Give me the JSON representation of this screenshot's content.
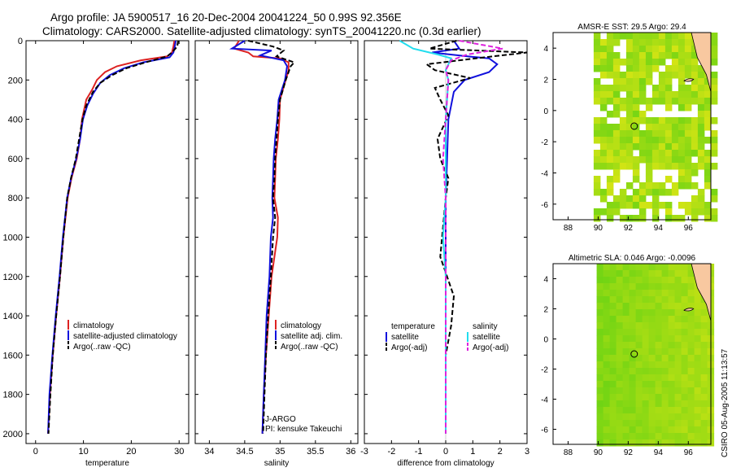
{
  "header": {
    "title_line1": "Argo profile: JA 5900517_16 20-Dec-2004 20041224_50 0.99S 92.356E",
    "title_line2": "Climatology: CARS2000. Satellite-adjusted climatology: synTS_20041220.nc (0.3d earlier)"
  },
  "colors": {
    "climatology": "#dd2222",
    "satellite": "#1111dd",
    "argo": "#000000",
    "salinity_satellite": "#22ddee",
    "salinity_argo": "#dd22dd",
    "land": "#f8c8a0",
    "ocean_green": "#33cc33",
    "ocean_yellow": "#ccee00"
  },
  "chart_data": [
    {
      "type": "line",
      "name": "temperature-panel",
      "xlabel": "temperature",
      "ylabel": "",
      "xlim": [
        -2,
        32
      ],
      "ylim": [
        2050,
        0
      ],
      "xticks": [
        0,
        10,
        20,
        30
      ],
      "yticks": [
        0,
        200,
        400,
        600,
        800,
        1000,
        1200,
        1400,
        1600,
        1800,
        2000
      ],
      "legend": [
        "climatology",
        "satellite-adjusted climatology",
        "Argo(..raw -QC)"
      ],
      "series": [
        {
          "name": "climatology",
          "style": "solid",
          "color_key": "climatology",
          "points": [
            [
              29.0,
              0
            ],
            [
              28.8,
              30
            ],
            [
              28.5,
              60
            ],
            [
              27.5,
              80
            ],
            [
              22,
              100
            ],
            [
              17,
              130
            ],
            [
              14.5,
              160
            ],
            [
              12.8,
              200
            ],
            [
              11.8,
              250
            ],
            [
              10.6,
              300
            ],
            [
              9.7,
              400
            ],
            [
              9.3,
              500
            ],
            [
              8.6,
              600
            ],
            [
              7.5,
              700
            ],
            [
              6.7,
              800
            ],
            [
              5.8,
              1000
            ],
            [
              5.1,
              1200
            ],
            [
              4.3,
              1400
            ],
            [
              3.6,
              1600
            ],
            [
              3.0,
              1800
            ],
            [
              2.6,
              2000
            ]
          ]
        },
        {
          "name": "satellite-adjusted climatology",
          "style": "solid",
          "color_key": "satellite",
          "points": [
            [
              29.3,
              0
            ],
            [
              29.1,
              30
            ],
            [
              28.8,
              60
            ],
            [
              28,
              85
            ],
            [
              22.5,
              110
            ],
            [
              18.5,
              140
            ],
            [
              15.5,
              175
            ],
            [
              13.5,
              215
            ],
            [
              12.0,
              270
            ],
            [
              10.8,
              330
            ],
            [
              9.9,
              400
            ],
            [
              9.3,
              500
            ],
            [
              8.5,
              600
            ],
            [
              7.4,
              700
            ],
            [
              6.6,
              800
            ],
            [
              5.7,
              1000
            ],
            [
              5.0,
              1200
            ],
            [
              4.2,
              1400
            ],
            [
              3.5,
              1600
            ],
            [
              2.9,
              1800
            ],
            [
              2.6,
              2000
            ]
          ]
        },
        {
          "name": "Argo(..raw -QC)",
          "style": "dashed",
          "color_key": "argo",
          "points": [
            [
              29.8,
              0
            ],
            [
              29.6,
              30
            ],
            [
              28.5,
              60
            ],
            [
              27.5,
              80
            ],
            [
              23,
              110
            ],
            [
              19,
              140
            ],
            [
              16,
              175
            ],
            [
              13.5,
              215
            ],
            [
              12.0,
              260
            ],
            [
              10.6,
              330
            ],
            [
              9.8,
              400
            ],
            [
              9.1,
              500
            ],
            [
              8.4,
              600
            ],
            [
              7.4,
              700
            ],
            [
              6.6,
              800
            ],
            [
              5.8,
              1000
            ],
            [
              5.1,
              1200
            ],
            [
              4.3,
              1400
            ],
            [
              3.6,
              1600
            ],
            [
              3.1,
              1800
            ],
            [
              2.7,
              2000
            ]
          ]
        }
      ]
    },
    {
      "type": "line",
      "name": "salinity-panel",
      "xlabel": "salinity",
      "xlim": [
        33.8,
        36.1
      ],
      "ylim": [
        2050,
        0
      ],
      "xticks": [
        34,
        34.5,
        35,
        35.5,
        36
      ],
      "legend": [
        "climatology",
        "satellite adj. clim.",
        "Argo(..raw -QC)"
      ],
      "series": [
        {
          "name": "climatology",
          "style": "solid",
          "color_key": "climatology",
          "points": [
            [
              34.42,
              0
            ],
            [
              34.35,
              40
            ],
            [
              34.55,
              60
            ],
            [
              34.62,
              80
            ],
            [
              35.0,
              90
            ],
            [
              35.12,
              110
            ],
            [
              35.12,
              150
            ],
            [
              35.08,
              200
            ],
            [
              35.0,
              300
            ],
            [
              34.99,
              400
            ],
            [
              34.97,
              500
            ],
            [
              34.94,
              600
            ],
            [
              34.93,
              700
            ],
            [
              34.92,
              800
            ],
            [
              34.97,
              900
            ],
            [
              34.96,
              1000
            ],
            [
              34.88,
              1200
            ],
            [
              34.84,
              1400
            ],
            [
              34.8,
              1600
            ],
            [
              34.77,
              1800
            ],
            [
              34.75,
              2000
            ]
          ]
        },
        {
          "name": "satellite adj. clim.",
          "style": "solid",
          "color_key": "satellite",
          "points": [
            [
              34.5,
              0
            ],
            [
              34.32,
              40
            ],
            [
              34.88,
              50
            ],
            [
              34.72,
              75
            ],
            [
              35.05,
              100
            ],
            [
              35.1,
              130
            ],
            [
              35.07,
              200
            ],
            [
              34.98,
              300
            ],
            [
              34.96,
              400
            ],
            [
              34.93,
              500
            ],
            [
              34.91,
              600
            ],
            [
              34.9,
              700
            ],
            [
              34.89,
              800
            ],
            [
              34.9,
              900
            ],
            [
              34.87,
              1000
            ],
            [
              34.85,
              1200
            ],
            [
              34.81,
              1400
            ],
            [
              34.79,
              1600
            ],
            [
              34.77,
              1800
            ],
            [
              34.75,
              2000
            ]
          ]
        },
        {
          "name": "Argo(..raw -QC)",
          "style": "dashed",
          "color_key": "argo",
          "points": [
            [
              34.55,
              0
            ],
            [
              34.9,
              30
            ],
            [
              35.05,
              50
            ],
            [
              34.95,
              80
            ],
            [
              35.2,
              110
            ],
            [
              35.15,
              130
            ],
            [
              35.08,
              200
            ],
            [
              35.0,
              300
            ],
            [
              34.97,
              400
            ],
            [
              34.95,
              500
            ],
            [
              34.93,
              600
            ],
            [
              34.92,
              700
            ],
            [
              34.9,
              800
            ],
            [
              34.93,
              900
            ],
            [
              34.9,
              1000
            ],
            [
              34.87,
              1200
            ],
            [
              34.83,
              1400
            ],
            [
              34.8,
              1600
            ],
            [
              34.78,
              1800
            ],
            [
              34.76,
              2000
            ]
          ]
        }
      ],
      "annotations": [
        "J-ARGO",
        "PI: kensuke Takeuchi"
      ]
    },
    {
      "type": "line",
      "name": "difference-panel",
      "xlabel": "difference from climatology",
      "xlim": [
        -3,
        3
      ],
      "ylim": [
        2050,
        0
      ],
      "xticks": [
        -3,
        -2,
        -1,
        0,
        1,
        2,
        3
      ],
      "legend": {
        "temperature": [
          "temperature",
          "satellite",
          "Argo(-adj)"
        ],
        "salinity": [
          "salinity",
          "satellite",
          "Argo(-adj)"
        ]
      },
      "series": [
        {
          "name": "temperature satellite",
          "style": "solid",
          "color_key": "satellite",
          "points": [
            [
              0.3,
              0
            ],
            [
              0.5,
              40
            ],
            [
              -0.5,
              60
            ],
            [
              0.8,
              80
            ],
            [
              1.6,
              90
            ],
            [
              1.9,
              120
            ],
            [
              1.6,
              160
            ],
            [
              0.7,
              200
            ],
            [
              0.3,
              260
            ],
            [
              0.1,
              400
            ],
            [
              0.05,
              600
            ],
            [
              0,
              800
            ],
            [
              0,
              1200
            ],
            [
              0,
              1600
            ],
            [
              0,
              2000
            ]
          ]
        },
        {
          "name": "temperature Argo(-adj)",
          "style": "dashed",
          "color_key": "argo",
          "points": [
            [
              0.4,
              0
            ],
            [
              -0.6,
              40
            ],
            [
              3.0,
              60
            ],
            [
              1.1,
              90
            ],
            [
              -0.7,
              120
            ],
            [
              -0.4,
              150
            ],
            [
              0.9,
              190
            ],
            [
              -0.4,
              240
            ],
            [
              -0.2,
              300
            ],
            [
              0.1,
              380
            ],
            [
              -0.3,
              500
            ],
            [
              -0.2,
              600
            ],
            [
              0.1,
              700
            ],
            [
              0,
              800
            ],
            [
              -0.2,
              1100
            ],
            [
              0.3,
              1300
            ],
            [
              0.2,
              1450
            ],
            [
              0,
              1600
            ],
            [
              0,
              2000
            ]
          ]
        },
        {
          "name": "salinity satellite",
          "style": "solid",
          "color_key": "salinity_satellite",
          "points": [
            [
              -1.7,
              0
            ],
            [
              -1.2,
              40
            ],
            [
              -0.3,
              70
            ],
            [
              0.2,
              90
            ],
            [
              0,
              150
            ],
            [
              0.1,
              200
            ],
            [
              0,
              400
            ],
            [
              0,
              800
            ],
            [
              -0.1,
              1000
            ],
            [
              0,
              1200
            ],
            [
              0,
              1600
            ],
            [
              0,
              2000
            ]
          ]
        },
        {
          "name": "salinity Argo(-adj)",
          "style": "dashed",
          "color_key": "salinity_argo",
          "points": [
            [
              0.5,
              0
            ],
            [
              2.1,
              40
            ],
            [
              0.8,
              70
            ],
            [
              0.2,
              100
            ],
            [
              0,
              150
            ],
            [
              0.1,
              200
            ],
            [
              0,
              400
            ],
            [
              -0.1,
              600
            ],
            [
              0,
              800
            ],
            [
              0,
              1200
            ],
            [
              0,
              1600
            ],
            [
              0,
              2000
            ]
          ]
        }
      ]
    },
    {
      "type": "heatmap",
      "name": "sst-map",
      "title": "AMSR-E SST: 29.5 Argo: 29.4",
      "xlim": [
        87,
        97.5
      ],
      "ylim": [
        -7,
        5
      ],
      "xticks": [
        88,
        90,
        92,
        94,
        96
      ],
      "yticks": [
        -6,
        -4,
        -2,
        0,
        2,
        4
      ],
      "marker": [
        92.4,
        -1.0
      ]
    },
    {
      "type": "heatmap",
      "name": "sla-map",
      "title": "Altimetric SLA: 0.046 Argo: -0.0096",
      "xlim": [
        87,
        97.5
      ],
      "ylim": [
        -7,
        5
      ],
      "xticks": [
        88,
        90,
        92,
        94,
        96
      ],
      "yticks": [
        -6,
        -4,
        -2,
        0,
        2,
        4
      ],
      "marker": [
        92.4,
        -1.0
      ]
    }
  ],
  "footer": {
    "stamp": "CSIRO 05-Aug-2005 11:13:57"
  }
}
